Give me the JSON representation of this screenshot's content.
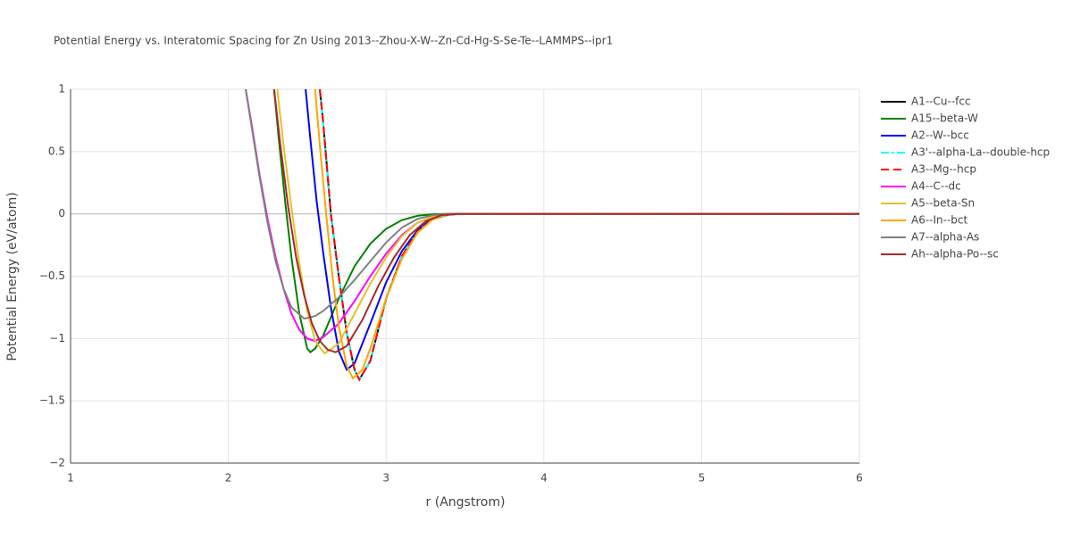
{
  "chart_data": {
    "type": "line",
    "title": "Potential Energy vs. Interatomic Spacing for Zn Using 2013--Zhou-X-W--Zn-Cd-Hg-S-Se-Te--LAMMPS--ipr1",
    "x_label": "r (Angstrom)",
    "y_label": "Potential Energy (eV/atom)",
    "xlim": [
      1,
      6
    ],
    "ylim": [
      -2,
      1
    ],
    "xticks": [
      1,
      2,
      3,
      4,
      5,
      6
    ],
    "yticks": [
      1,
      0.5,
      0,
      {
        "value": -0.5,
        "label": "−0.5"
      },
      {
        "value": -1,
        "label": "−1"
      },
      {
        "value": -1.5,
        "label": "−1.5"
      },
      {
        "value": -2,
        "label": "−2"
      }
    ],
    "grid": true,
    "legend": "right",
    "series": [
      {
        "name": "A1--Cu--fcc",
        "color": "#000000",
        "dash": "solid",
        "x": [
          2.58,
          2.6,
          2.65,
          2.7,
          2.75,
          2.8,
          2.83,
          2.9,
          3.0,
          3.1,
          3.2,
          3.3,
          3.4,
          3.5,
          6
        ],
        "values": [
          1,
          0.75,
          0,
          -0.5,
          -0.95,
          -1.25,
          -1.33,
          -1.18,
          -0.68,
          -0.34,
          -0.14,
          -0.04,
          -0.005,
          0,
          0
        ]
      },
      {
        "name": "A15--beta-W",
        "color": "#008000",
        "dash": "solid",
        "x": [
          2.29,
          2.32,
          2.36,
          2.4,
          2.45,
          2.5,
          2.52,
          2.55,
          2.6,
          2.7,
          2.8,
          2.9,
          3.0,
          3.1,
          3.2,
          3.3,
          3.4,
          6
        ],
        "values": [
          1,
          0.6,
          0.1,
          -0.35,
          -0.8,
          -1.08,
          -1.11,
          -1.08,
          -0.98,
          -0.68,
          -0.42,
          -0.24,
          -0.12,
          -0.05,
          -0.015,
          -0.003,
          0,
          0
        ]
      },
      {
        "name": "A2--W--bcc",
        "color": "#0000ff",
        "dash": "solid",
        "x": [
          2.49,
          2.52,
          2.56,
          2.6,
          2.65,
          2.7,
          2.75,
          2.8,
          2.9,
          3.0,
          3.1,
          3.2,
          3.3,
          3.4,
          3.5,
          6
        ],
        "values": [
          1,
          0.6,
          0.1,
          -0.3,
          -0.75,
          -1.1,
          -1.25,
          -1.2,
          -0.88,
          -0.55,
          -0.3,
          -0.13,
          -0.03,
          -0.005,
          0,
          0
        ]
      },
      {
        "name": "A3'--alpha-La--double-hcp",
        "color": "#00ffff",
        "dash": "dashdot",
        "x": [
          2.58,
          2.6,
          2.65,
          2.7,
          2.75,
          2.8,
          2.83,
          2.9,
          3.0,
          3.1,
          3.2,
          3.3,
          3.4,
          3.5,
          6
        ],
        "values": [
          1,
          0.75,
          0,
          -0.5,
          -0.95,
          -1.25,
          -1.33,
          -1.18,
          -0.68,
          -0.34,
          -0.14,
          -0.04,
          -0.005,
          0,
          0
        ]
      },
      {
        "name": "A3--Mg--hcp",
        "color": "#ff0000",
        "dash": "dash",
        "x": [
          2.58,
          2.6,
          2.65,
          2.7,
          2.75,
          2.8,
          2.83,
          2.9,
          3.0,
          3.1,
          3.2,
          3.3,
          3.4,
          3.5,
          6
        ],
        "values": [
          1,
          0.75,
          0,
          -0.5,
          -0.95,
          -1.25,
          -1.33,
          -1.18,
          -0.68,
          -0.34,
          -0.14,
          -0.04,
          -0.005,
          0,
          0
        ]
      },
      {
        "name": "A4--C--dc",
        "color": "#ff00ff",
        "dash": "solid",
        "x": [
          2.11,
          2.15,
          2.2,
          2.25,
          2.3,
          2.35,
          2.4,
          2.45,
          2.5,
          2.55,
          2.6,
          2.7,
          2.8,
          2.9,
          3.0,
          3.1,
          3.2,
          3.3,
          3.4,
          6
        ],
        "values": [
          1,
          0.7,
          0.3,
          -0.05,
          -0.35,
          -0.6,
          -0.8,
          -0.93,
          -1.0,
          -1.02,
          -0.99,
          -0.88,
          -0.7,
          -0.5,
          -0.32,
          -0.17,
          -0.07,
          -0.02,
          0,
          0
        ]
      },
      {
        "name": "A5--beta-Sn",
        "color": "#e3c22a",
        "dash": "solid",
        "x": [
          2.31,
          2.35,
          2.4,
          2.45,
          2.5,
          2.55,
          2.61,
          2.7,
          2.8,
          2.9,
          3.0,
          3.1,
          3.2,
          3.3,
          3.4,
          6
        ],
        "values": [
          1,
          0.55,
          0.05,
          -0.4,
          -0.78,
          -1.02,
          -1.12,
          -1.04,
          -0.8,
          -0.56,
          -0.35,
          -0.18,
          -0.07,
          -0.02,
          0,
          0
        ]
      },
      {
        "name": "A6--In--bct",
        "color": "#ffa500",
        "dash": "solid",
        "x": [
          2.55,
          2.58,
          2.62,
          2.66,
          2.7,
          2.75,
          2.79,
          2.85,
          2.9,
          3.0,
          3.1,
          3.2,
          3.3,
          3.4,
          6
        ],
        "values": [
          1,
          0.55,
          0,
          -0.5,
          -0.9,
          -1.22,
          -1.32,
          -1.25,
          -1.08,
          -0.68,
          -0.36,
          -0.15,
          -0.04,
          0,
          0
        ]
      },
      {
        "name": "A7--alpha-As",
        "color": "#808080",
        "dash": "solid",
        "x": [
          2.11,
          2.15,
          2.2,
          2.25,
          2.3,
          2.35,
          2.4,
          2.48,
          2.55,
          2.6,
          2.7,
          2.8,
          2.9,
          3.0,
          3.1,
          3.2,
          3.3,
          3.4,
          6
        ],
        "values": [
          1,
          0.68,
          0.28,
          -0.08,
          -0.38,
          -0.6,
          -0.75,
          -0.84,
          -0.82,
          -0.78,
          -0.67,
          -0.53,
          -0.38,
          -0.23,
          -0.11,
          -0.04,
          -0.01,
          0,
          0
        ]
      },
      {
        "name": "Ah--alpha-Po--sc",
        "color": "#a52a2a",
        "dash": "solid",
        "x": [
          2.29,
          2.33,
          2.38,
          2.43,
          2.48,
          2.53,
          2.58,
          2.63,
          2.68,
          2.75,
          2.85,
          2.95,
          3.05,
          3.15,
          3.25,
          3.35,
          3.45,
          6
        ],
        "values": [
          1,
          0.55,
          0.05,
          -0.35,
          -0.65,
          -0.88,
          -1.02,
          -1.09,
          -1.11,
          -1.06,
          -0.85,
          -0.58,
          -0.35,
          -0.17,
          -0.06,
          -0.01,
          0,
          0
        ]
      }
    ]
  }
}
